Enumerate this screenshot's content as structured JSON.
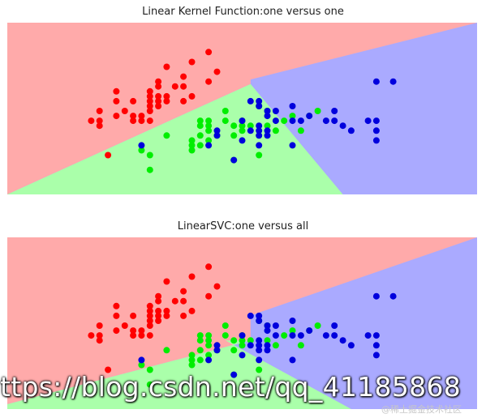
{
  "colors": {
    "region_red": "#ffaaaa",
    "region_green": "#aaffaa",
    "region_blue": "#aaaaff",
    "point_red": "#ff0000",
    "point_green": "#00ee00",
    "point_blue": "#0000dd"
  },
  "chart_data": [
    {
      "type": "scatter",
      "title": "Linear Kernel Function:one versus one",
      "xlim": [
        3.3,
        8.9
      ],
      "ylim": [
        1.5,
        5.0
      ],
      "grid": false,
      "regions": {
        "red_blue_boundary": [
          [
            3.3,
            2.6
          ],
          [
            8.9,
            5.0
          ]
        ],
        "red_green_boundary": [
          [
            3.3,
            1.5
          ],
          [
            6.2,
            3.75
          ]
        ],
        "green_blue_boundary": [
          [
            6.2,
            3.75
          ],
          [
            7.3,
            1.5
          ]
        ]
      },
      "series": [
        {
          "color": "red",
          "points": [
            [
              4.3,
              3.0
            ],
            [
              4.4,
              2.9
            ],
            [
              4.4,
              3.0
            ],
            [
              4.4,
              3.2
            ],
            [
              4.5,
              2.3
            ],
            [
              4.6,
              3.1
            ],
            [
              4.6,
              3.4
            ],
            [
              4.6,
              3.6
            ],
            [
              4.7,
              3.2
            ],
            [
              4.8,
              3.0
            ],
            [
              4.8,
              3.1
            ],
            [
              4.8,
              3.4
            ],
            [
              4.9,
              3.0
            ],
            [
              4.9,
              3.1
            ],
            [
              5.0,
              3.0
            ],
            [
              5.0,
              3.2
            ],
            [
              5.0,
              3.3
            ],
            [
              5.0,
              3.4
            ],
            [
              5.0,
              3.5
            ],
            [
              5.0,
              3.6
            ],
            [
              5.1,
              3.3
            ],
            [
              5.1,
              3.4
            ],
            [
              5.1,
              3.5
            ],
            [
              5.1,
              3.7
            ],
            [
              5.1,
              3.8
            ],
            [
              5.2,
              3.4
            ],
            [
              5.2,
              3.5
            ],
            [
              5.2,
              4.1
            ],
            [
              5.3,
              3.7
            ],
            [
              5.4,
              3.4
            ],
            [
              5.4,
              3.7
            ],
            [
              5.4,
              3.9
            ],
            [
              5.5,
              3.5
            ],
            [
              5.5,
              4.2
            ],
            [
              5.7,
              3.8
            ],
            [
              5.7,
              4.4
            ],
            [
              5.8,
              4.0
            ]
          ]
        },
        {
          "color": "green",
          "points": [
            [
              4.9,
              2.4
            ],
            [
              5.0,
              2.0
            ],
            [
              5.0,
              2.3
            ],
            [
              5.2,
              2.7
            ],
            [
              5.5,
              2.4
            ],
            [
              5.5,
              2.5
            ],
            [
              5.5,
              2.6
            ],
            [
              5.6,
              2.5
            ],
            [
              5.6,
              2.7
            ],
            [
              5.6,
              2.9
            ],
            [
              5.6,
              3.0
            ],
            [
              5.7,
              2.6
            ],
            [
              5.7,
              2.8
            ],
            [
              5.7,
              2.9
            ],
            [
              5.7,
              3.0
            ],
            [
              5.8,
              2.7
            ],
            [
              5.9,
              3.0
            ],
            [
              5.9,
              3.2
            ],
            [
              6.0,
              2.2
            ],
            [
              6.0,
              2.7
            ],
            [
              6.0,
              2.9
            ],
            [
              6.1,
              2.8
            ],
            [
              6.1,
              2.9
            ],
            [
              6.1,
              3.0
            ],
            [
              6.2,
              2.9
            ],
            [
              6.3,
              3.3
            ],
            [
              6.3,
              2.3
            ],
            [
              6.4,
              2.9
            ],
            [
              6.4,
              3.2
            ],
            [
              6.5,
              2.8
            ],
            [
              6.6,
              3.0
            ],
            [
              6.7,
              3.1
            ],
            [
              6.8,
              2.8
            ],
            [
              6.9,
              3.1
            ],
            [
              7.0,
              3.2
            ]
          ]
        },
        {
          "color": "blue",
          "points": [
            [
              4.9,
              2.5
            ],
            [
              5.7,
              2.5
            ],
            [
              5.8,
              2.7
            ],
            [
              5.8,
              2.8
            ],
            [
              6.0,
              2.2
            ],
            [
              6.1,
              2.6
            ],
            [
              6.1,
              3.0
            ],
            [
              6.2,
              2.8
            ],
            [
              6.2,
              3.4
            ],
            [
              6.3,
              2.5
            ],
            [
              6.3,
              2.7
            ],
            [
              6.3,
              2.8
            ],
            [
              6.3,
              2.9
            ],
            [
              6.3,
              3.3
            ],
            [
              6.3,
              3.4
            ],
            [
              6.4,
              2.7
            ],
            [
              6.4,
              2.8
            ],
            [
              6.4,
              3.1
            ],
            [
              6.4,
              3.2
            ],
            [
              6.5,
              3.0
            ],
            [
              6.5,
              3.2
            ],
            [
              6.7,
              2.5
            ],
            [
              6.7,
              3.0
            ],
            [
              6.7,
              3.3
            ],
            [
              6.8,
              3.0
            ],
            [
              6.9,
              3.1
            ],
            [
              7.1,
              3.0
            ],
            [
              7.2,
              3.0
            ],
            [
              7.2,
              3.2
            ],
            [
              7.3,
              2.9
            ],
            [
              7.4,
              2.8
            ],
            [
              7.6,
              3.0
            ],
            [
              7.7,
              2.6
            ],
            [
              7.7,
              2.8
            ],
            [
              7.7,
              3.0
            ],
            [
              7.7,
              3.8
            ],
            [
              7.9,
              3.8
            ]
          ]
        }
      ]
    },
    {
      "type": "scatter",
      "title": "LinearSVC:one versus all",
      "xlim": [
        3.3,
        8.9
      ],
      "ylim": [
        1.5,
        5.0
      ],
      "grid": false,
      "regions": {
        "red_blue_boundary": [
          [
            3.3,
            1.7
          ],
          [
            8.9,
            5.0
          ]
        ],
        "red_green_boundary": [
          [
            3.3,
            1.6
          ],
          [
            6.2,
            2.9
          ]
        ],
        "green_blue_boundary": [
          [
            5.9,
            2.9
          ],
          [
            7.4,
            1.5
          ]
        ]
      },
      "series": [
        {
          "color": "red",
          "points": [
            [
              4.3,
              3.0
            ],
            [
              4.4,
              2.9
            ],
            [
              4.4,
              3.0
            ],
            [
              4.4,
              3.2
            ],
            [
              4.5,
              2.3
            ],
            [
              4.6,
              3.1
            ],
            [
              4.6,
              3.4
            ],
            [
              4.6,
              3.6
            ],
            [
              4.7,
              3.2
            ],
            [
              4.8,
              3.0
            ],
            [
              4.8,
              3.1
            ],
            [
              4.8,
              3.4
            ],
            [
              4.9,
              3.0
            ],
            [
              4.9,
              3.1
            ],
            [
              5.0,
              3.0
            ],
            [
              5.0,
              3.2
            ],
            [
              5.0,
              3.3
            ],
            [
              5.0,
              3.4
            ],
            [
              5.0,
              3.5
            ],
            [
              5.0,
              3.6
            ],
            [
              5.1,
              3.3
            ],
            [
              5.1,
              3.4
            ],
            [
              5.1,
              3.5
            ],
            [
              5.1,
              3.7
            ],
            [
              5.1,
              3.8
            ],
            [
              5.2,
              3.4
            ],
            [
              5.2,
              3.5
            ],
            [
              5.2,
              4.1
            ],
            [
              5.3,
              3.7
            ],
            [
              5.4,
              3.4
            ],
            [
              5.4,
              3.7
            ],
            [
              5.4,
              3.9
            ],
            [
              5.5,
              3.5
            ],
            [
              5.5,
              4.2
            ],
            [
              5.7,
              3.8
            ],
            [
              5.7,
              4.4
            ],
            [
              5.8,
              4.0
            ]
          ]
        },
        {
          "color": "green",
          "points": [
            [
              4.9,
              2.4
            ],
            [
              5.0,
              2.0
            ],
            [
              5.0,
              2.3
            ],
            [
              5.2,
              2.7
            ],
            [
              5.5,
              2.4
            ],
            [
              5.5,
              2.5
            ],
            [
              5.5,
              2.6
            ],
            [
              5.6,
              2.5
            ],
            [
              5.6,
              2.7
            ],
            [
              5.6,
              2.9
            ],
            [
              5.6,
              3.0
            ],
            [
              5.7,
              2.6
            ],
            [
              5.7,
              2.8
            ],
            [
              5.7,
              2.9
            ],
            [
              5.7,
              3.0
            ],
            [
              5.8,
              2.7
            ],
            [
              5.9,
              3.0
            ],
            [
              5.9,
              3.2
            ],
            [
              6.0,
              2.2
            ],
            [
              6.0,
              2.7
            ],
            [
              6.0,
              2.9
            ],
            [
              6.1,
              2.8
            ],
            [
              6.1,
              2.9
            ],
            [
              6.1,
              3.0
            ],
            [
              6.2,
              2.9
            ],
            [
              6.3,
              3.3
            ],
            [
              6.3,
              2.3
            ],
            [
              6.4,
              2.9
            ],
            [
              6.4,
              3.2
            ],
            [
              6.5,
              2.8
            ],
            [
              6.6,
              3.0
            ],
            [
              6.7,
              3.1
            ],
            [
              6.8,
              2.8
            ],
            [
              6.9,
              3.1
            ],
            [
              7.0,
              3.2
            ]
          ]
        },
        {
          "color": "blue",
          "points": [
            [
              4.9,
              2.5
            ],
            [
              5.7,
              2.5
            ],
            [
              5.8,
              2.7
            ],
            [
              5.8,
              2.8
            ],
            [
              6.0,
              2.2
            ],
            [
              6.1,
              2.6
            ],
            [
              6.1,
              3.0
            ],
            [
              6.2,
              2.8
            ],
            [
              6.2,
              3.4
            ],
            [
              6.3,
              2.5
            ],
            [
              6.3,
              2.7
            ],
            [
              6.3,
              2.8
            ],
            [
              6.3,
              2.9
            ],
            [
              6.3,
              3.3
            ],
            [
              6.3,
              3.4
            ],
            [
              6.4,
              2.7
            ],
            [
              6.4,
              2.8
            ],
            [
              6.4,
              3.1
            ],
            [
              6.4,
              3.2
            ],
            [
              6.5,
              3.0
            ],
            [
              6.5,
              3.2
            ],
            [
              6.7,
              2.5
            ],
            [
              6.7,
              3.0
            ],
            [
              6.7,
              3.3
            ],
            [
              6.8,
              3.0
            ],
            [
              6.9,
              3.1
            ],
            [
              7.1,
              3.0
            ],
            [
              7.2,
              3.0
            ],
            [
              7.2,
              3.2
            ],
            [
              7.3,
              2.9
            ],
            [
              7.4,
              2.8
            ],
            [
              7.6,
              3.0
            ],
            [
              7.7,
              2.6
            ],
            [
              7.7,
              2.8
            ],
            [
              7.7,
              3.0
            ],
            [
              7.7,
              3.8
            ],
            [
              7.9,
              3.8
            ]
          ]
        }
      ]
    }
  ],
  "watermark": {
    "text": "ttps://blog.csdn.net/qq_41185868",
    "sub": "@稀土掘金技术社区"
  }
}
